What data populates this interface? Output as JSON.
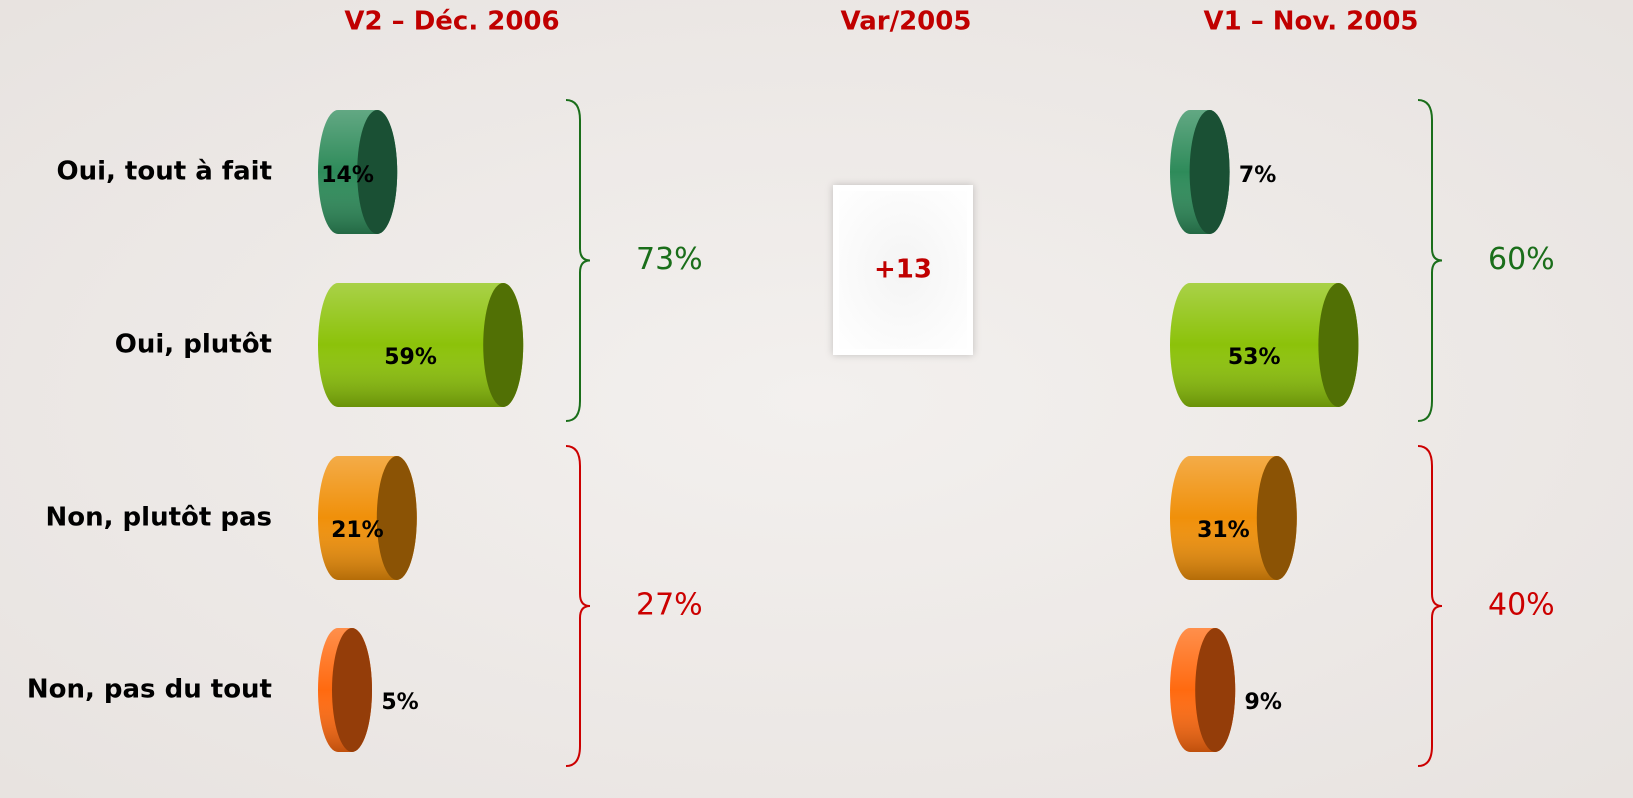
{
  "chart_data": [
    {
      "type": "bar",
      "title": "V2 – Déc. 2006",
      "categories": [
        "Oui, tout à fait",
        "Oui, plutôt",
        "Non, plutôt pas",
        "Non, pas du tout"
      ],
      "values": [
        14,
        59,
        21,
        5
      ],
      "value_labels": [
        "14%",
        "59%",
        "21%",
        "5%"
      ],
      "colors": [
        "#2e8b5a",
        "#8cc20a",
        "#f0900a",
        "#ff6a10"
      ],
      "totals": [
        {
          "value": 73,
          "label": "73%",
          "color": "#1a6e1a"
        },
        {
          "value": 27,
          "label": "27%",
          "color": "#cc0000"
        }
      ]
    },
    {
      "type": "bar",
      "title": "V1 – Nov. 2005",
      "values": [
        7,
        53,
        31,
        9
      ],
      "value_labels": [
        "7%",
        "53%",
        "31%",
        "9%"
      ],
      "colors": [
        "#2e8b5a",
        "#8cc20a",
        "#f0900a",
        "#ff6a10"
      ],
      "totals": [
        {
          "value": 60,
          "label": "60%",
          "color": "#1a6e1a"
        },
        {
          "value": 40,
          "label": "40%",
          "color": "#cc0000"
        }
      ]
    }
  ],
  "variation": {
    "title": "Var/2005",
    "value": {
      "value": 13,
      "label": "+13"
    }
  }
}
